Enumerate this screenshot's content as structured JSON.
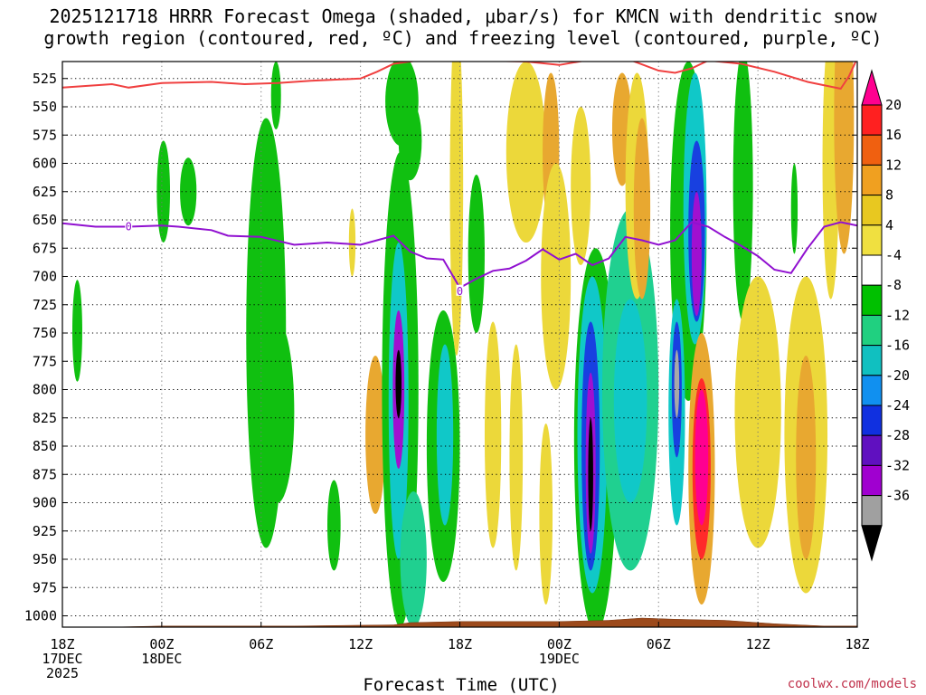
{
  "title": {
    "line1": "2025121718 HRRR Forecast Omega (shaded, μbar/s) for KMCN with dendritic snow",
    "line2": "growth region (contoured, red, ºC) and freezing level (contoured, purple, ºC)"
  },
  "credit": "coolwx.com/models",
  "chart_data": {
    "type": "heatmap",
    "xlabel": "Forecast Time (UTC)",
    "x_ticks": [
      {
        "hour": 0,
        "lines": [
          "18Z",
          "17DEC",
          "2025"
        ]
      },
      {
        "hour": 6,
        "lines": [
          "00Z",
          "18DEC"
        ]
      },
      {
        "hour": 12,
        "lines": [
          "06Z"
        ]
      },
      {
        "hour": 18,
        "lines": [
          "12Z"
        ]
      },
      {
        "hour": 24,
        "lines": [
          "18Z"
        ]
      },
      {
        "hour": 30,
        "lines": [
          "00Z",
          "19DEC"
        ]
      },
      {
        "hour": 36,
        "lines": [
          "06Z"
        ]
      },
      {
        "hour": 42,
        "lines": [
          "12Z"
        ]
      },
      {
        "hour": 48,
        "lines": [
          "18Z"
        ]
      }
    ],
    "x_range": [
      0,
      48
    ],
    "y_ticks": [
      525,
      550,
      575,
      600,
      625,
      650,
      675,
      700,
      725,
      750,
      775,
      800,
      825,
      850,
      875,
      900,
      925,
      950,
      975,
      1000
    ],
    "y_range": [
      510,
      1010
    ],
    "grid": true,
    "colorbar": {
      "labels": [
        "20",
        "16",
        "12",
        "8",
        "4",
        "-4",
        "-8",
        "-12",
        "-16",
        "-20",
        "-24",
        "-28",
        "-32",
        "-36"
      ],
      "colors": [
        "#ff0090",
        "#ff2020",
        "#f06010",
        "#f0a020",
        "#e8c820",
        "#f0e040",
        "#ffffff",
        "#00c000",
        "#20d080",
        "#10c0c0",
        "#1090f0",
        "#1030e0",
        "#6010c0",
        "#a000d0",
        "#a0a0a0",
        "#000000"
      ]
    },
    "omega_cells": [
      {
        "t": 0.9,
        "p": 748,
        "rt": 0.3,
        "rp": 45,
        "v": -6
      },
      {
        "t": 6.1,
        "p": 625,
        "rt": 0.4,
        "rp": 45,
        "v": -6
      },
      {
        "t": 7.6,
        "p": 625,
        "rt": 0.5,
        "rp": 30,
        "v": -6
      },
      {
        "t": 12.3,
        "p": 750,
        "rt": 1.2,
        "rp": 190,
        "v": -6
      },
      {
        "t": 13.0,
        "p": 820,
        "rt": 1.0,
        "rp": 80,
        "v": -7
      },
      {
        "t": 12.9,
        "p": 540,
        "rt": 0.3,
        "rp": 30,
        "v": -6
      },
      {
        "t": 16.4,
        "p": 920,
        "rt": 0.4,
        "rp": 40,
        "v": -6
      },
      {
        "t": 17.5,
        "p": 670,
        "rt": 0.2,
        "rp": 30,
        "v": 5
      },
      {
        "t": 18.9,
        "p": 840,
        "rt": 0.6,
        "rp": 70,
        "v": 8
      },
      {
        "t": 20.5,
        "p": 545,
        "rt": 1.0,
        "rp": 40,
        "v": -7
      },
      {
        "t": 21.0,
        "p": 580,
        "rt": 0.7,
        "rp": 35,
        "v": -6
      },
      {
        "t": 20.4,
        "p": 800,
        "rt": 1.1,
        "rp": 210,
        "v": -7
      },
      {
        "t": 20.3,
        "p": 810,
        "rt": 0.6,
        "rp": 140,
        "v": -14
      },
      {
        "t": 20.3,
        "p": 800,
        "rt": 0.35,
        "rp": 70,
        "v": -28
      },
      {
        "t": 20.3,
        "p": 795,
        "rt": 0.18,
        "rp": 30,
        "v": -40
      },
      {
        "t": 21.2,
        "p": 950,
        "rt": 0.8,
        "rp": 60,
        "v": -10
      },
      {
        "t": 23.0,
        "p": 850,
        "rt": 1.0,
        "rp": 120,
        "v": -7
      },
      {
        "t": 23.1,
        "p": 840,
        "rt": 0.5,
        "rp": 80,
        "v": -13
      },
      {
        "t": 23.8,
        "p": 620,
        "rt": 0.4,
        "rp": 150,
        "v": 5
      },
      {
        "t": 25.0,
        "p": 680,
        "rt": 0.5,
        "rp": 70,
        "v": -6
      },
      {
        "t": 26.0,
        "p": 840,
        "rt": 0.5,
        "rp": 100,
        "v": 5
      },
      {
        "t": 27.4,
        "p": 860,
        "rt": 0.4,
        "rp": 100,
        "v": 5
      },
      {
        "t": 28.0,
        "p": 590,
        "rt": 1.2,
        "rp": 80,
        "v": 5
      },
      {
        "t": 29.5,
        "p": 590,
        "rt": 0.5,
        "rp": 70,
        "v": 9
      },
      {
        "t": 29.8,
        "p": 700,
        "rt": 0.9,
        "rp": 100,
        "v": 5
      },
      {
        "t": 29.2,
        "p": 910,
        "rt": 0.4,
        "rp": 80,
        "v": 5
      },
      {
        "t": 31.3,
        "p": 620,
        "rt": 0.6,
        "rp": 70,
        "v": 5
      },
      {
        "t": 32.2,
        "p": 845,
        "rt": 1.3,
        "rp": 170,
        "v": -7
      },
      {
        "t": 32.0,
        "p": 840,
        "rt": 0.9,
        "rp": 140,
        "v": -13
      },
      {
        "t": 31.9,
        "p": 850,
        "rt": 0.55,
        "rp": 110,
        "v": -22
      },
      {
        "t": 31.9,
        "p": 865,
        "rt": 0.3,
        "rp": 80,
        "v": -30
      },
      {
        "t": 31.9,
        "p": 875,
        "rt": 0.15,
        "rp": 50,
        "v": -40
      },
      {
        "t": 34.3,
        "p": 800,
        "rt": 1.7,
        "rp": 160,
        "v": -9
      },
      {
        "t": 34.3,
        "p": 810,
        "rt": 1.0,
        "rp": 90,
        "v": -13
      },
      {
        "t": 33.8,
        "p": 570,
        "rt": 0.6,
        "rp": 50,
        "v": 8
      },
      {
        "t": 34.7,
        "p": 620,
        "rt": 0.7,
        "rp": 100,
        "v": 5
      },
      {
        "t": 35.0,
        "p": 640,
        "rt": 0.5,
        "rp": 80,
        "v": 9
      },
      {
        "t": 37.8,
        "p": 660,
        "rt": 1.1,
        "rp": 150,
        "v": -7
      },
      {
        "t": 38.2,
        "p": 640,
        "rt": 0.7,
        "rp": 120,
        "v": -12
      },
      {
        "t": 38.3,
        "p": 660,
        "rt": 0.5,
        "rp": 80,
        "v": -20
      },
      {
        "t": 38.3,
        "p": 680,
        "rt": 0.3,
        "rp": 55,
        "v": -28
      },
      {
        "t": 37.1,
        "p": 820,
        "rt": 0.5,
        "rp": 100,
        "v": -12
      },
      {
        "t": 37.1,
        "p": 800,
        "rt": 0.3,
        "rp": 60,
        "v": -22
      },
      {
        "t": 37.1,
        "p": 795,
        "rt": 0.15,
        "rp": 30,
        "v": -34
      },
      {
        "t": 38.6,
        "p": 870,
        "rt": 0.8,
        "rp": 120,
        "v": 8
      },
      {
        "t": 38.6,
        "p": 870,
        "rt": 0.55,
        "rp": 80,
        "v": 16
      },
      {
        "t": 38.6,
        "p": 860,
        "rt": 0.4,
        "rp": 60,
        "v": 22
      },
      {
        "t": 41.1,
        "p": 620,
        "rt": 0.6,
        "rp": 120,
        "v": -6
      },
      {
        "t": 42.0,
        "p": 820,
        "rt": 1.4,
        "rp": 120,
        "v": 5
      },
      {
        "t": 44.2,
        "p": 640,
        "rt": 0.2,
        "rp": 40,
        "v": -6
      },
      {
        "t": 44.9,
        "p": 840,
        "rt": 1.3,
        "rp": 140,
        "v": 5
      },
      {
        "t": 44.9,
        "p": 860,
        "rt": 0.6,
        "rp": 90,
        "v": 9
      },
      {
        "t": 46.4,
        "p": 600,
        "rt": 0.5,
        "rp": 120,
        "v": 5
      },
      {
        "t": 47.2,
        "p": 560,
        "rt": 0.6,
        "rp": 120,
        "v": 10
      }
    ],
    "red_contour": [
      [
        0,
        533
      ],
      [
        3,
        530
      ],
      [
        4,
        533
      ],
      [
        6,
        529
      ],
      [
        9,
        528
      ],
      [
        11,
        530
      ],
      [
        13,
        529
      ],
      [
        15,
        527
      ],
      [
        18,
        525
      ],
      [
        19,
        519
      ],
      [
        20,
        512
      ],
      [
        22,
        508
      ],
      [
        23,
        507
      ],
      [
        25,
        509
      ],
      [
        28,
        510
      ],
      [
        30,
        513
      ],
      [
        32,
        508
      ],
      [
        34,
        507
      ],
      [
        36,
        518
      ],
      [
        37,
        520
      ],
      [
        38,
        516
      ],
      [
        39,
        509
      ],
      [
        41,
        512
      ],
      [
        43,
        519
      ],
      [
        45,
        528
      ],
      [
        47,
        534
      ],
      [
        47.5,
        523
      ],
      [
        48,
        507
      ]
    ],
    "freezing_level": [
      [
        0,
        653
      ],
      [
        2,
        656
      ],
      [
        4,
        656
      ],
      [
        6,
        655
      ],
      [
        7,
        656
      ],
      [
        9,
        659
      ],
      [
        10,
        664
      ],
      [
        12,
        665
      ],
      [
        14,
        672
      ],
      [
        16,
        670
      ],
      [
        18,
        672
      ],
      [
        19,
        668
      ],
      [
        20,
        664
      ],
      [
        21,
        678
      ],
      [
        22,
        684
      ],
      [
        23,
        685
      ],
      [
        24,
        710
      ],
      [
        25,
        702
      ],
      [
        26,
        695
      ],
      [
        27,
        693
      ],
      [
        28,
        686
      ],
      [
        29,
        676
      ],
      [
        30,
        685
      ],
      [
        31,
        680
      ],
      [
        32,
        690
      ],
      [
        33,
        684
      ],
      [
        34,
        665
      ],
      [
        35,
        668
      ],
      [
        36,
        672
      ],
      [
        37,
        668
      ],
      [
        38,
        652
      ],
      [
        39,
        656
      ],
      [
        40,
        665
      ],
      [
        41,
        673
      ],
      [
        42,
        682
      ],
      [
        43,
        694
      ],
      [
        44,
        697
      ],
      [
        45,
        675
      ],
      [
        46,
        656
      ],
      [
        47,
        652
      ],
      [
        48,
        655
      ]
    ],
    "freezing_label": "0",
    "freezing_label_positions": [
      [
        4,
        656
      ],
      [
        24,
        713
      ]
    ],
    "terrain": [
      [
        0,
        1012
      ],
      [
        2,
        1012
      ],
      [
        3,
        1010
      ],
      [
        6,
        1009
      ],
      [
        10,
        1009
      ],
      [
        14,
        1009
      ],
      [
        20,
        1008
      ],
      [
        21,
        1006
      ],
      [
        24,
        1005
      ],
      [
        30,
        1005
      ],
      [
        33,
        1004
      ],
      [
        35,
        1002
      ],
      [
        37,
        1003
      ],
      [
        40,
        1004
      ],
      [
        43,
        1007
      ],
      [
        46,
        1009
      ],
      [
        48,
        1009
      ]
    ]
  }
}
